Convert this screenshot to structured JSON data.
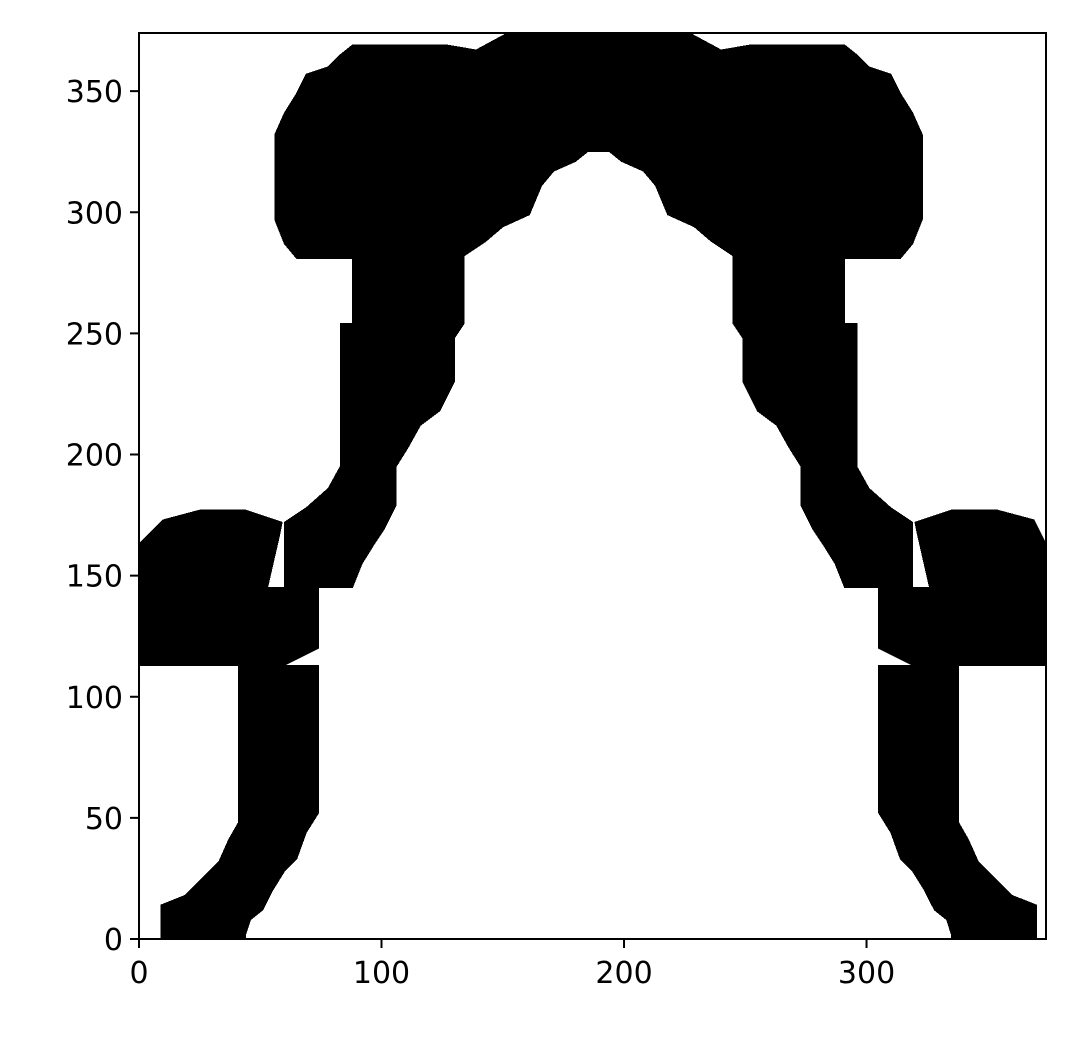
{
  "chart_data": {
    "type": "heatmap",
    "title": "",
    "xlabel": "",
    "ylabel": "",
    "xlim": [
      0,
      374
    ],
    "ylim": [
      0,
      374
    ],
    "xticks": [
      0,
      100,
      200,
      300
    ],
    "yticks": [
      0,
      50,
      100,
      150,
      200,
      250,
      300,
      350
    ],
    "xtick_labels": [
      "0",
      "100",
      "200",
      "300"
    ],
    "ytick_labels": [
      "0",
      "50",
      "100",
      "150",
      "200",
      "250",
      "300",
      "350"
    ],
    "grid": false,
    "legend": "none",
    "colormap": {
      "filled": "#000000",
      "empty": "#ffffff"
    },
    "cell_size": 4.6,
    "mask_description": "binary mask, filled cells drawn black",
    "filled_polygons": [
      [
        [
          5,
          113
        ],
        [
          41,
          113
        ],
        [
          41,
          145
        ],
        [
          53,
          145
        ],
        [
          58,
          167
        ],
        [
          59,
          172
        ],
        [
          44,
          177
        ],
        [
          25,
          177
        ],
        [
          10,
          173
        ],
        [
          0,
          163
        ],
        [
          0,
          113
        ]
      ],
      [
        [
          41,
          113
        ],
        [
          60,
          113
        ],
        [
          74,
          120
        ],
        [
          74,
          145
        ],
        [
          60,
          145
        ],
        [
          41,
          145
        ]
      ],
      [
        [
          41,
          113
        ],
        [
          74,
          113
        ],
        [
          74,
          52
        ],
        [
          69,
          44
        ],
        [
          65,
          33
        ],
        [
          60,
          28
        ],
        [
          55,
          20
        ],
        [
          51,
          12
        ],
        [
          46,
          8
        ],
        [
          44,
          2
        ],
        [
          44,
          0
        ],
        [
          9,
          0
        ],
        [
          9,
          14
        ],
        [
          19,
          18
        ],
        [
          28,
          27
        ],
        [
          33,
          32
        ],
        [
          37,
          41
        ],
        [
          41,
          48
        ],
        [
          41,
          113
        ]
      ],
      [
        [
          60,
          145
        ],
        [
          88,
          145
        ],
        [
          92,
          155
        ],
        [
          97,
          163
        ],
        [
          101,
          169
        ],
        [
          106,
          179
        ],
        [
          106,
          195
        ],
        [
          111,
          203
        ],
        [
          116,
          212
        ],
        [
          124,
          218
        ],
        [
          130,
          230
        ],
        [
          130,
          248
        ],
        [
          134,
          254
        ],
        [
          134,
          282
        ],
        [
          143,
          288
        ],
        [
          150,
          294
        ],
        [
          161,
          299
        ],
        [
          166,
          311
        ],
        [
          171,
          317
        ],
        [
          180,
          321
        ],
        [
          185,
          325
        ],
        [
          190,
          325
        ],
        [
          190,
          374
        ],
        [
          152,
          374
        ],
        [
          139,
          367
        ],
        [
          127,
          369
        ],
        [
          88,
          369
        ],
        [
          83,
          365
        ],
        [
          78,
          360
        ],
        [
          69,
          357
        ],
        [
          65,
          349
        ],
        [
          60,
          341
        ],
        [
          56,
          332
        ],
        [
          56,
          297
        ],
        [
          60,
          287
        ],
        [
          65,
          281
        ],
        [
          83,
          281
        ],
        [
          88,
          281
        ],
        [
          88,
          254
        ],
        [
          83,
          254
        ],
        [
          83,
          195
        ],
        [
          78,
          186
        ],
        [
          69,
          178
        ],
        [
          60,
          172
        ]
      ],
      [
        [
          374,
          113
        ],
        [
          338,
          113
        ],
        [
          338,
          145
        ],
        [
          326,
          145
        ],
        [
          321,
          167
        ],
        [
          320,
          172
        ],
        [
          335,
          177
        ],
        [
          354,
          177
        ],
        [
          369,
          173
        ],
        [
          374,
          163
        ],
        [
          374,
          113
        ]
      ],
      [
        [
          338,
          113
        ],
        [
          319,
          113
        ],
        [
          305,
          120
        ],
        [
          305,
          145
        ],
        [
          319,
          145
        ],
        [
          338,
          145
        ]
      ],
      [
        [
          338,
          113
        ],
        [
          305,
          113
        ],
        [
          305,
          52
        ],
        [
          310,
          44
        ],
        [
          314,
          33
        ],
        [
          319,
          28
        ],
        [
          324,
          20
        ],
        [
          328,
          12
        ],
        [
          333,
          8
        ],
        [
          335,
          2
        ],
        [
          335,
          0
        ],
        [
          370,
          0
        ],
        [
          370,
          14
        ],
        [
          360,
          18
        ],
        [
          351,
          27
        ],
        [
          346,
          32
        ],
        [
          342,
          41
        ],
        [
          338,
          48
        ],
        [
          338,
          113
        ]
      ],
      [
        [
          319,
          145
        ],
        [
          291,
          145
        ],
        [
          287,
          155
        ],
        [
          282,
          163
        ],
        [
          278,
          169
        ],
        [
          273,
          179
        ],
        [
          273,
          195
        ],
        [
          268,
          203
        ],
        [
          263,
          212
        ],
        [
          255,
          218
        ],
        [
          249,
          230
        ],
        [
          249,
          248
        ],
        [
          245,
          254
        ],
        [
          245,
          282
        ],
        [
          236,
          288
        ],
        [
          229,
          294
        ],
        [
          218,
          299
        ],
        [
          213,
          311
        ],
        [
          208,
          317
        ],
        [
          199,
          321
        ],
        [
          194,
          325
        ],
        [
          189,
          325
        ],
        [
          189,
          374
        ],
        [
          227,
          374
        ],
        [
          240,
          367
        ],
        [
          252,
          369
        ],
        [
          291,
          369
        ],
        [
          296,
          365
        ],
        [
          301,
          360
        ],
        [
          310,
          357
        ],
        [
          314,
          349
        ],
        [
          319,
          341
        ],
        [
          323,
          332
        ],
        [
          323,
          297
        ],
        [
          319,
          287
        ],
        [
          314,
          281
        ],
        [
          296,
          281
        ],
        [
          291,
          281
        ],
        [
          291,
          254
        ],
        [
          296,
          254
        ],
        [
          296,
          195
        ],
        [
          301,
          186
        ],
        [
          310,
          178
        ],
        [
          319,
          172
        ]
      ]
    ]
  }
}
